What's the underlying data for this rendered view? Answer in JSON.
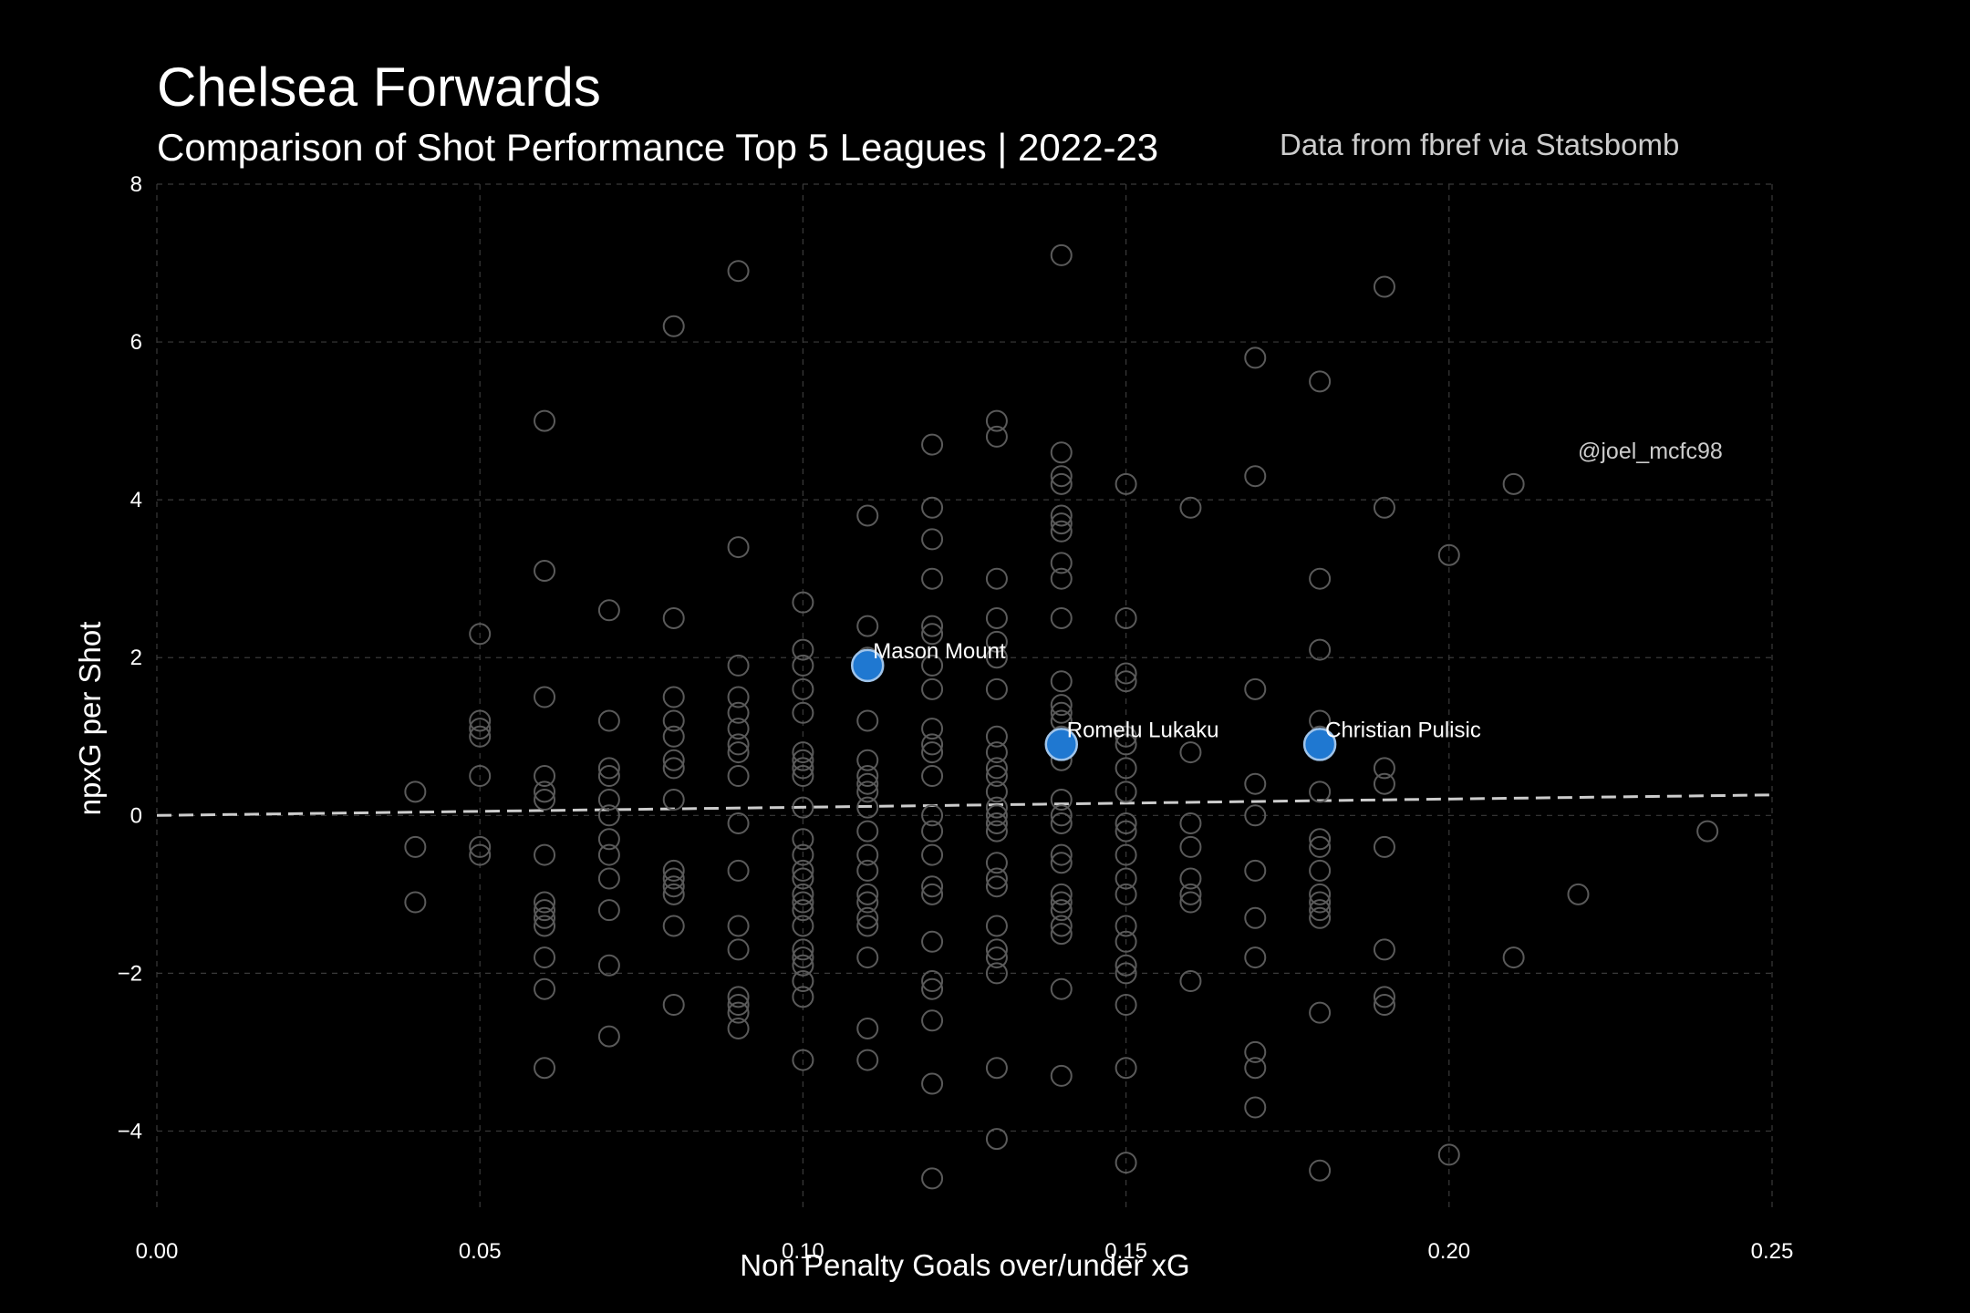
{
  "chart_data": {
    "type": "scatter",
    "title": "Chelsea Forwards",
    "subtitle": "Comparison of Shot Performance Top 5 Leagues | 2022-23",
    "source_note": "Data from fbref via Statsbomb",
    "credit": "@joel_mcfc98",
    "xlabel": "Non Penalty Goals over/under xG",
    "ylabel": "npxG per Shot",
    "xlim": [
      0.0,
      0.25
    ],
    "ylim": [
      -5,
      8
    ],
    "x_ticks": [
      "0.00",
      "0.05",
      "0.10",
      "0.15",
      "0.20",
      "0.25"
    ],
    "y_ticks": [
      "−4",
      "−2",
      "0",
      "2",
      "4",
      "6",
      "8"
    ],
    "x_tick_values": [
      0.0,
      0.05,
      0.1,
      0.15,
      0.2,
      0.25
    ],
    "y_tick_values": [
      -4,
      -2,
      0,
      2,
      4,
      6,
      8
    ],
    "grid": true,
    "trend_line": {
      "x": [
        0.0,
        0.25
      ],
      "y": [
        0.0,
        0.26
      ],
      "color": "#cccccc"
    },
    "colors": {
      "background": "#000000",
      "points": "#5a5a5a",
      "highlight": "#1f78d1",
      "highlight_edge": "#9fc4ea"
    },
    "points": [
      [
        0.04,
        0.3
      ],
      [
        0.04,
        -0.4
      ],
      [
        0.04,
        -1.1
      ],
      [
        0.05,
        2.3
      ],
      [
        0.05,
        1.2
      ],
      [
        0.05,
        1.1
      ],
      [
        0.05,
        1.0
      ],
      [
        0.05,
        0.5
      ],
      [
        0.05,
        -0.4
      ],
      [
        0.05,
        -0.5
      ],
      [
        0.06,
        5.0
      ],
      [
        0.06,
        3.1
      ],
      [
        0.06,
        1.5
      ],
      [
        0.06,
        0.5
      ],
      [
        0.06,
        0.3
      ],
      [
        0.06,
        0.2
      ],
      [
        0.06,
        -0.5
      ],
      [
        0.06,
        -1.1
      ],
      [
        0.06,
        -1.2
      ],
      [
        0.06,
        -1.3
      ],
      [
        0.06,
        -1.4
      ],
      [
        0.06,
        -1.8
      ],
      [
        0.06,
        -2.2
      ],
      [
        0.06,
        -3.2
      ],
      [
        0.07,
        2.6
      ],
      [
        0.07,
        1.2
      ],
      [
        0.07,
        0.6
      ],
      [
        0.07,
        0.5
      ],
      [
        0.07,
        0.2
      ],
      [
        0.07,
        0.0
      ],
      [
        0.07,
        -0.3
      ],
      [
        0.07,
        -0.5
      ],
      [
        0.07,
        -0.8
      ],
      [
        0.07,
        -1.2
      ],
      [
        0.07,
        -1.9
      ],
      [
        0.07,
        -2.8
      ],
      [
        0.08,
        6.2
      ],
      [
        0.08,
        2.5
      ],
      [
        0.08,
        1.5
      ],
      [
        0.08,
        1.2
      ],
      [
        0.08,
        1.0
      ],
      [
        0.08,
        0.7
      ],
      [
        0.08,
        0.6
      ],
      [
        0.08,
        0.2
      ],
      [
        0.08,
        -0.7
      ],
      [
        0.08,
        -0.8
      ],
      [
        0.08,
        -0.9
      ],
      [
        0.08,
        -1.0
      ],
      [
        0.08,
        -1.4
      ],
      [
        0.08,
        -2.4
      ],
      [
        0.09,
        6.9
      ],
      [
        0.09,
        3.4
      ],
      [
        0.09,
        1.9
      ],
      [
        0.09,
        1.5
      ],
      [
        0.09,
        1.3
      ],
      [
        0.09,
        1.1
      ],
      [
        0.09,
        0.9
      ],
      [
        0.09,
        0.8
      ],
      [
        0.09,
        0.5
      ],
      [
        0.09,
        -0.1
      ],
      [
        0.09,
        -0.7
      ],
      [
        0.09,
        -1.4
      ],
      [
        0.09,
        -1.7
      ],
      [
        0.09,
        -2.3
      ],
      [
        0.09,
        -2.4
      ],
      [
        0.09,
        -2.5
      ],
      [
        0.09,
        -2.7
      ],
      [
        0.1,
        2.7
      ],
      [
        0.1,
        2.1
      ],
      [
        0.1,
        1.9
      ],
      [
        0.1,
        1.6
      ],
      [
        0.1,
        1.3
      ],
      [
        0.1,
        0.8
      ],
      [
        0.1,
        0.7
      ],
      [
        0.1,
        0.6
      ],
      [
        0.1,
        0.5
      ],
      [
        0.1,
        0.1
      ],
      [
        0.1,
        -0.3
      ],
      [
        0.1,
        -0.5
      ],
      [
        0.1,
        -0.7
      ],
      [
        0.1,
        -0.8
      ],
      [
        0.1,
        -1.0
      ],
      [
        0.1,
        -1.1
      ],
      [
        0.1,
        -1.2
      ],
      [
        0.1,
        -1.4
      ],
      [
        0.1,
        -1.7
      ],
      [
        0.1,
        -1.8
      ],
      [
        0.1,
        -1.9
      ],
      [
        0.1,
        -2.1
      ],
      [
        0.1,
        -2.3
      ],
      [
        0.1,
        -3.1
      ],
      [
        0.11,
        3.8
      ],
      [
        0.11,
        2.4
      ],
      [
        0.11,
        2.0
      ],
      [
        0.11,
        1.2
      ],
      [
        0.11,
        0.7
      ],
      [
        0.11,
        0.5
      ],
      [
        0.11,
        0.4
      ],
      [
        0.11,
        0.3
      ],
      [
        0.11,
        0.1
      ],
      [
        0.11,
        -0.2
      ],
      [
        0.11,
        -0.5
      ],
      [
        0.11,
        -0.7
      ],
      [
        0.11,
        -1.0
      ],
      [
        0.11,
        -1.1
      ],
      [
        0.11,
        -1.3
      ],
      [
        0.11,
        -1.4
      ],
      [
        0.11,
        -1.8
      ],
      [
        0.11,
        -2.7
      ],
      [
        0.11,
        -3.1
      ],
      [
        0.12,
        4.7
      ],
      [
        0.12,
        3.9
      ],
      [
        0.12,
        3.5
      ],
      [
        0.12,
        3.0
      ],
      [
        0.12,
        2.4
      ],
      [
        0.12,
        2.3
      ],
      [
        0.12,
        1.9
      ],
      [
        0.12,
        1.6
      ],
      [
        0.12,
        1.1
      ],
      [
        0.12,
        0.9
      ],
      [
        0.12,
        0.8
      ],
      [
        0.12,
        0.5
      ],
      [
        0.12,
        0.0
      ],
      [
        0.12,
        -0.2
      ],
      [
        0.12,
        -0.5
      ],
      [
        0.12,
        -0.9
      ],
      [
        0.12,
        -1.0
      ],
      [
        0.12,
        -1.6
      ],
      [
        0.12,
        -2.1
      ],
      [
        0.12,
        -2.2
      ],
      [
        0.12,
        -2.6
      ],
      [
        0.12,
        -3.4
      ],
      [
        0.12,
        -4.6
      ],
      [
        0.13,
        5.0
      ],
      [
        0.13,
        4.8
      ],
      [
        0.13,
        3.0
      ],
      [
        0.13,
        2.5
      ],
      [
        0.13,
        2.2
      ],
      [
        0.13,
        2.0
      ],
      [
        0.13,
        1.6
      ],
      [
        0.13,
        1.0
      ],
      [
        0.13,
        0.8
      ],
      [
        0.13,
        0.6
      ],
      [
        0.13,
        0.5
      ],
      [
        0.13,
        0.3
      ],
      [
        0.13,
        0.1
      ],
      [
        0.13,
        0.0
      ],
      [
        0.13,
        -0.1
      ],
      [
        0.13,
        -0.2
      ],
      [
        0.13,
        -0.6
      ],
      [
        0.13,
        -0.8
      ],
      [
        0.13,
        -0.9
      ],
      [
        0.13,
        -1.4
      ],
      [
        0.13,
        -1.7
      ],
      [
        0.13,
        -1.8
      ],
      [
        0.13,
        -2.0
      ],
      [
        0.13,
        -3.2
      ],
      [
        0.13,
        -4.1
      ],
      [
        0.14,
        7.1
      ],
      [
        0.14,
        4.6
      ],
      [
        0.14,
        4.3
      ],
      [
        0.14,
        4.2
      ],
      [
        0.14,
        3.8
      ],
      [
        0.14,
        3.7
      ],
      [
        0.14,
        3.6
      ],
      [
        0.14,
        3.2
      ],
      [
        0.14,
        3.0
      ],
      [
        0.14,
        2.5
      ],
      [
        0.14,
        1.7
      ],
      [
        0.14,
        1.4
      ],
      [
        0.14,
        1.3
      ],
      [
        0.14,
        1.2
      ],
      [
        0.14,
        1.0
      ],
      [
        0.14,
        0.7
      ],
      [
        0.14,
        0.2
      ],
      [
        0.14,
        0.0
      ],
      [
        0.14,
        -0.1
      ],
      [
        0.14,
        -0.5
      ],
      [
        0.14,
        -0.6
      ],
      [
        0.14,
        -1.0
      ],
      [
        0.14,
        -1.1
      ],
      [
        0.14,
        -1.2
      ],
      [
        0.14,
        -1.4
      ],
      [
        0.14,
        -1.5
      ],
      [
        0.14,
        -2.2
      ],
      [
        0.14,
        -3.3
      ],
      [
        0.15,
        4.2
      ],
      [
        0.15,
        2.5
      ],
      [
        0.15,
        1.8
      ],
      [
        0.15,
        1.7
      ],
      [
        0.15,
        1.0
      ],
      [
        0.15,
        0.9
      ],
      [
        0.15,
        0.6
      ],
      [
        0.15,
        0.3
      ],
      [
        0.15,
        -0.1
      ],
      [
        0.15,
        -0.2
      ],
      [
        0.15,
        -0.5
      ],
      [
        0.15,
        -0.8
      ],
      [
        0.15,
        -1.0
      ],
      [
        0.15,
        -1.4
      ],
      [
        0.15,
        -1.6
      ],
      [
        0.15,
        -1.9
      ],
      [
        0.15,
        -2.0
      ],
      [
        0.15,
        -2.4
      ],
      [
        0.15,
        -3.2
      ],
      [
        0.15,
        -4.4
      ],
      [
        0.16,
        3.9
      ],
      [
        0.16,
        0.8
      ],
      [
        0.16,
        -0.1
      ],
      [
        0.16,
        -0.4
      ],
      [
        0.16,
        -0.8
      ],
      [
        0.16,
        -1.0
      ],
      [
        0.16,
        -1.1
      ],
      [
        0.16,
        -2.1
      ],
      [
        0.17,
        5.8
      ],
      [
        0.17,
        4.3
      ],
      [
        0.17,
        1.6
      ],
      [
        0.17,
        0.4
      ],
      [
        0.17,
        0.0
      ],
      [
        0.17,
        -0.7
      ],
      [
        0.17,
        -1.3
      ],
      [
        0.17,
        -1.8
      ],
      [
        0.17,
        -3.0
      ],
      [
        0.17,
        -3.2
      ],
      [
        0.17,
        -3.7
      ],
      [
        0.18,
        5.5
      ],
      [
        0.18,
        3.0
      ],
      [
        0.18,
        2.1
      ],
      [
        0.18,
        1.2
      ],
      [
        0.18,
        1.0
      ],
      [
        0.18,
        0.3
      ],
      [
        0.18,
        -0.3
      ],
      [
        0.18,
        -0.4
      ],
      [
        0.18,
        -0.7
      ],
      [
        0.18,
        -1.0
      ],
      [
        0.18,
        -1.1
      ],
      [
        0.18,
        -1.2
      ],
      [
        0.18,
        -1.3
      ],
      [
        0.18,
        -2.5
      ],
      [
        0.18,
        -4.5
      ],
      [
        0.19,
        6.7
      ],
      [
        0.19,
        3.9
      ],
      [
        0.19,
        0.6
      ],
      [
        0.19,
        0.4
      ],
      [
        0.19,
        -0.4
      ],
      [
        0.19,
        -1.7
      ],
      [
        0.19,
        -2.3
      ],
      [
        0.19,
        -2.4
      ],
      [
        0.2,
        3.3
      ],
      [
        0.2,
        -4.3
      ],
      [
        0.21,
        4.2
      ],
      [
        0.21,
        -1.8
      ],
      [
        0.22,
        -1.0
      ],
      [
        0.24,
        -0.2
      ]
    ],
    "highlights": [
      {
        "name": "Mason Mount",
        "x": 0.11,
        "y": 1.9
      },
      {
        "name": "Romelu Lukaku",
        "x": 0.14,
        "y": 0.9
      },
      {
        "name": "Christian Pulisic",
        "x": 0.18,
        "y": 0.9
      }
    ]
  }
}
